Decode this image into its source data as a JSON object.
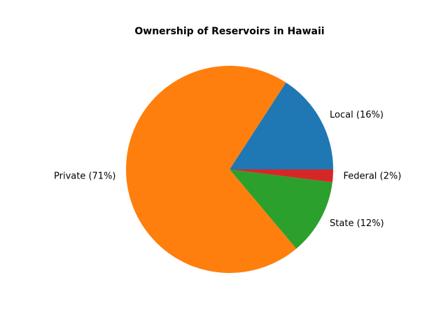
{
  "chart_data": {
    "type": "pie",
    "title": "Ownership of Reservoirs in Hawaii",
    "start_angle_deg": 0,
    "direction": "counterclockwise",
    "slices": [
      {
        "label": "Local (16%)",
        "value": 16,
        "color": "#1f77b4"
      },
      {
        "label": "Private (71%)",
        "value": 71,
        "color": "#ff7f0e"
      },
      {
        "label": "State (12%)",
        "value": 12,
        "color": "#2ca02c"
      },
      {
        "label": "Federal (2%)",
        "value": 2,
        "color": "#d62728"
      }
    ]
  }
}
